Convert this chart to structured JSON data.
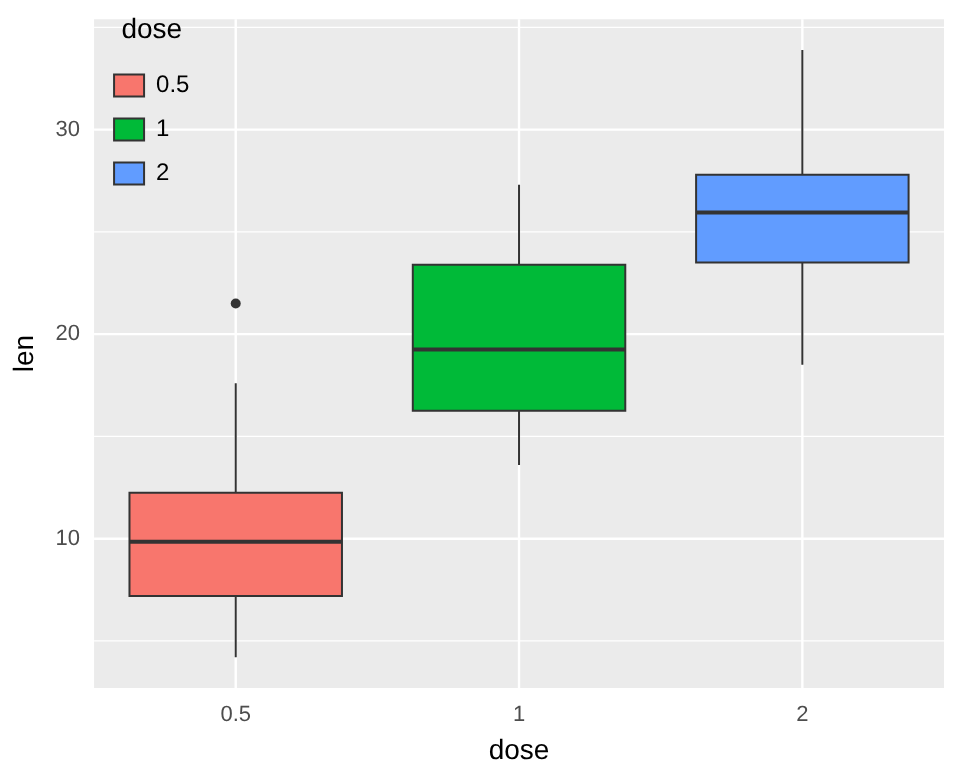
{
  "chart_data": {
    "type": "box",
    "xlabel": "dose",
    "ylabel": "len",
    "legend_title": "dose",
    "legend": "top left",
    "grid": true,
    "categories": [
      "0.5",
      "1",
      "2"
    ],
    "series": [
      {
        "name": "0.5",
        "color": "#f8766d",
        "boxes": [
          {
            "low": 4.2,
            "q1": 7.2,
            "median": 9.85,
            "q3": 12.25,
            "high": 17.6,
            "outliers": [
              21.5
            ]
          },
          null,
          null
        ]
      },
      {
        "name": "1",
        "color": "#00ba38",
        "boxes": [
          null,
          {
            "low": 13.6,
            "q1": 16.25,
            "median": 19.25,
            "q3": 23.4,
            "high": 27.3
          },
          null
        ]
      },
      {
        "name": "2",
        "color": "#619cff",
        "boxes": [
          null,
          null,
          {
            "low": 18.5,
            "q1": 23.5,
            "median": 25.95,
            "q3": 27.8,
            "high": 33.9
          }
        ]
      }
    ],
    "ylim": [
      2.7,
      35.4
    ],
    "yticks": [
      10,
      20,
      30
    ]
  }
}
